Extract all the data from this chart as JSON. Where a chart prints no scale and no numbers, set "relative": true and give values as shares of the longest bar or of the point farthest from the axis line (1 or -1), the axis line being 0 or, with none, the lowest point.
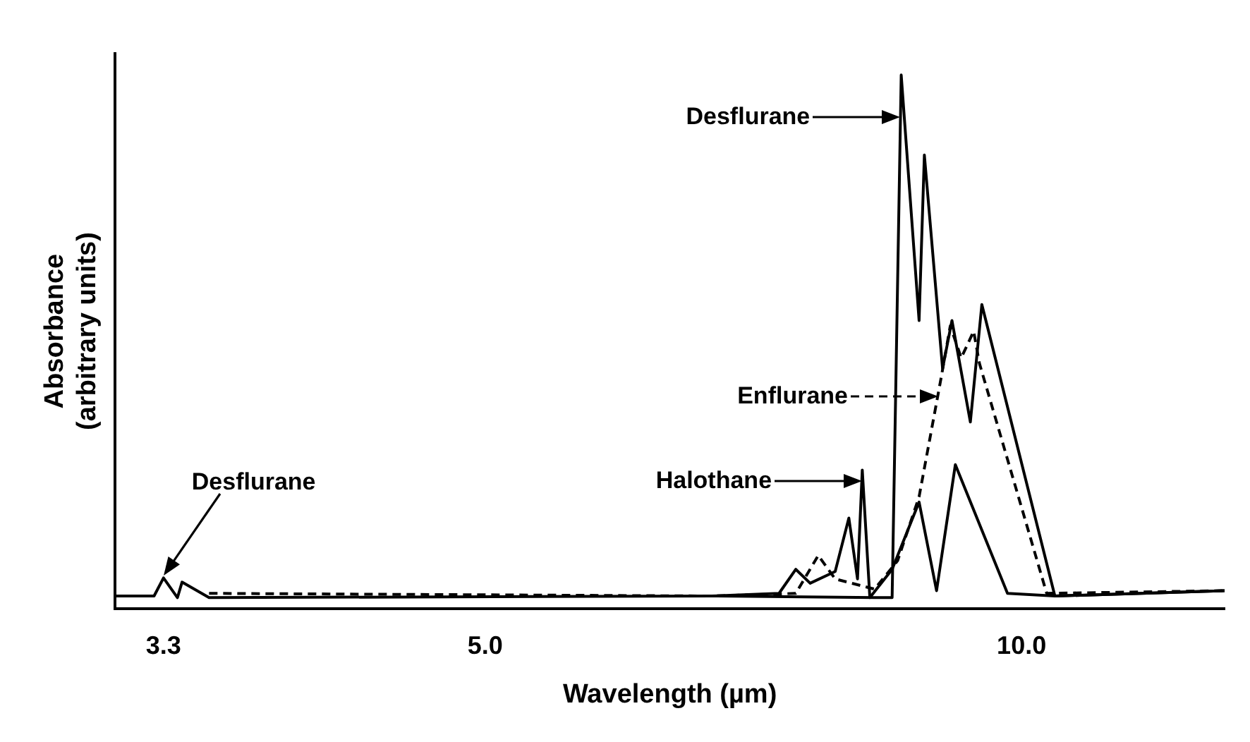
{
  "chart_data": {
    "type": "line",
    "xlabel": "Wavelength (µm)",
    "ylabel": "Absorbance\n(arbitrary units)",
    "relative": true,
    "log": "x",
    "xlim": [
      3.1,
      13
    ],
    "xticks": [
      {
        "value": 3.3,
        "label": "3.3"
      },
      {
        "value": 5,
        "label": "5.0"
      },
      {
        "value": 10,
        "label": "10.0"
      }
    ],
    "grid": false,
    "marker": "none",
    "legend": "right",
    "series": [
      {
        "name": "Desflurane",
        "color": "#000000",
        "line_style": "solid",
        "x": [
          3.1,
          3.26,
          3.3,
          3.36,
          3.38,
          3.5,
          6.7,
          8.27,
          8.46,
          8.56,
          8.76,
          8.82,
          9.03,
          9.14,
          9.36,
          9.5,
          10.44,
          13.0
        ],
        "values": [
          0.024,
          0.024,
          0.058,
          0.021,
          0.05,
          0.021,
          0.024,
          0.021,
          0.021,
          1,
          0.54,
          0.85,
          0.45,
          0.54,
          0.35,
          0.57,
          0.024,
          0.034
        ]
      },
      {
        "name": "Enflurane",
        "color": "#000000",
        "line_style": "dashed",
        "x": [
          3.5,
          6.7,
          7.47,
          7.69,
          7.86,
          8.27,
          8.52,
          8.76,
          9.01,
          9.12,
          9.25,
          9.4,
          9.47,
          10.33,
          13.0
        ],
        "values": [
          0.029,
          0.024,
          0.029,
          0.1,
          0.056,
          0.037,
          0.09,
          0.21,
          0.43,
          0.53,
          0.47,
          0.52,
          0.46,
          0.029,
          0.034
        ]
      },
      {
        "name": "Halothane",
        "color": "#000000",
        "line_style": "solid",
        "x": [
          6.7,
          7.31,
          7.47,
          7.61,
          7.86,
          8.0,
          8.09,
          8.14,
          8.22,
          8.46,
          8.76,
          8.96,
          9.18,
          9.82,
          10.44,
          13.0
        ],
        "values": [
          0.024,
          0.029,
          0.074,
          0.048,
          0.07,
          0.17,
          0.056,
          0.26,
          0.021,
          0.074,
          0.2,
          0.034,
          0.27,
          0.029,
          0.024,
          0.034
        ]
      }
    ],
    "annotations": [
      "Desflurane"
    ]
  }
}
